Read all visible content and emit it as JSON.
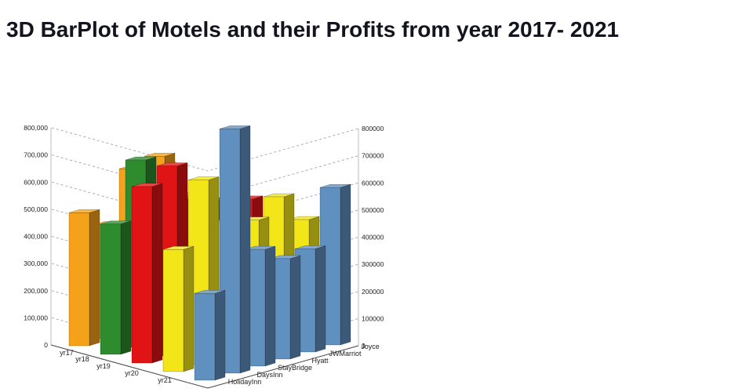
{
  "title": "3D BarPlot of Motels and their Profits from year 2017- 2021",
  "chart_data": {
    "type": "bar",
    "projection": "3d",
    "title": "3D BarPlot of Motels and their Profits from year 2017- 2021",
    "categories": [
      "HolidayInn",
      "DaysInn",
      "StayBridge",
      "Hyatt",
      "JWMarriot",
      "Joyce"
    ],
    "series": [
      {
        "name": "yr17",
        "color": "#F5A21B",
        "values": [
          490000,
          420000,
          600000,
          620000,
          450000,
          380000
        ]
      },
      {
        "name": "yr18",
        "color": "#2E8B2E",
        "values": [
          480000,
          690000,
          450000,
          400000,
          380000,
          350000
        ]
      },
      {
        "name": "yr19",
        "color": "#E01414",
        "values": [
          650000,
          700000,
          550000,
          520000,
          500000,
          400000
        ]
      },
      {
        "name": "yr20",
        "color": "#F2E619",
        "values": [
          450000,
          680000,
          500000,
          480000,
          540000,
          430000
        ]
      },
      {
        "name": "yr21",
        "color": "#6090C0",
        "values": [
          320000,
          900000,
          430000,
          370000,
          380000,
          580000
        ]
      }
    ],
    "value_axis": {
      "min": 0,
      "max": 800000,
      "tick_values": [
        0,
        100000,
        200000,
        300000,
        400000,
        500000,
        600000,
        700000,
        800000
      ],
      "left_tick_labels": [
        "0",
        "100,000",
        "200,000",
        "300,000",
        "400,000",
        "500,000",
        "600,000",
        "700,000",
        "800,000"
      ],
      "right_tick_labels": [
        "0",
        "100000",
        "200000",
        "300000",
        "400000",
        "500000",
        "600000",
        "700000",
        "800000"
      ]
    },
    "grid": "dashed",
    "legend": "none"
  }
}
